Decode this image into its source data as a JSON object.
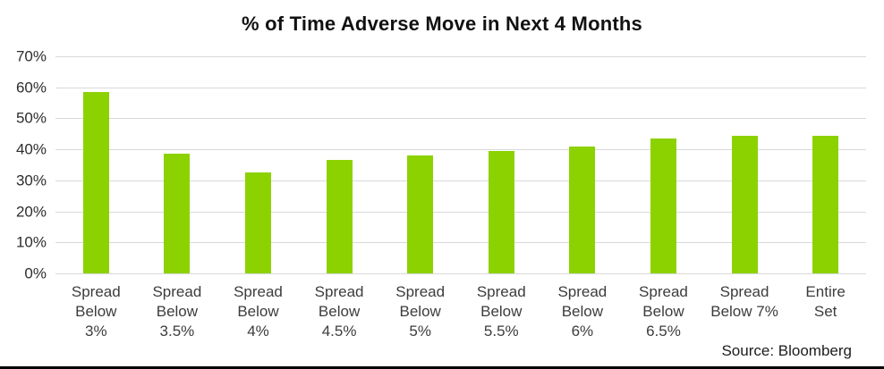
{
  "title": "% of Time Adverse Move in Next 4 Months",
  "source": "Source: Bloomberg",
  "colors": {
    "bar": "#8CD200",
    "gridline": "#D9D9D9",
    "title_text": "#111111",
    "ytick_text": "#2D2D2D",
    "xtick_text": "#3C3C3C",
    "source_text": "#1C1C1C",
    "bottom_border": "#000000"
  },
  "chart_data": {
    "type": "bar",
    "title": "% of Time Adverse Move in Next 4 Months",
    "categories": [
      "Spread Below 3%",
      "Spread Below 3.5%",
      "Spread Below 4%",
      "Spread Below 4.5%",
      "Spread Below 5%",
      "Spread Below 5.5%",
      "Spread Below 6%",
      "Spread Below 6.5%",
      "Spread Below 7%",
      "Entire Set"
    ],
    "category_display": [
      "Spread\nBelow\n3%",
      "Spread\nBelow\n3.5%",
      "Spread\nBelow\n4%",
      "Spread\nBelow\n4.5%",
      "Spread\nBelow\n5%",
      "Spread\nBelow\n5.5%",
      "Spread\nBelow\n6%",
      "Spread\nBelow\n6.5%",
      "Spread\nBelow 7%",
      "Entire\nSet"
    ],
    "values": [
      58.5,
      38.5,
      32.5,
      36.5,
      38,
      39.5,
      41,
      43.5,
      44.5,
      44.5
    ],
    "unit": "%",
    "xlabel": "",
    "ylabel": "",
    "ylim": [
      0,
      70
    ],
    "ytick_step": 10,
    "yticks": [
      "70%",
      "60%",
      "50%",
      "40%",
      "30%",
      "20%",
      "10%",
      "0%"
    ],
    "grid": "horizontal",
    "legend": false,
    "source": "Source: Bloomberg"
  }
}
